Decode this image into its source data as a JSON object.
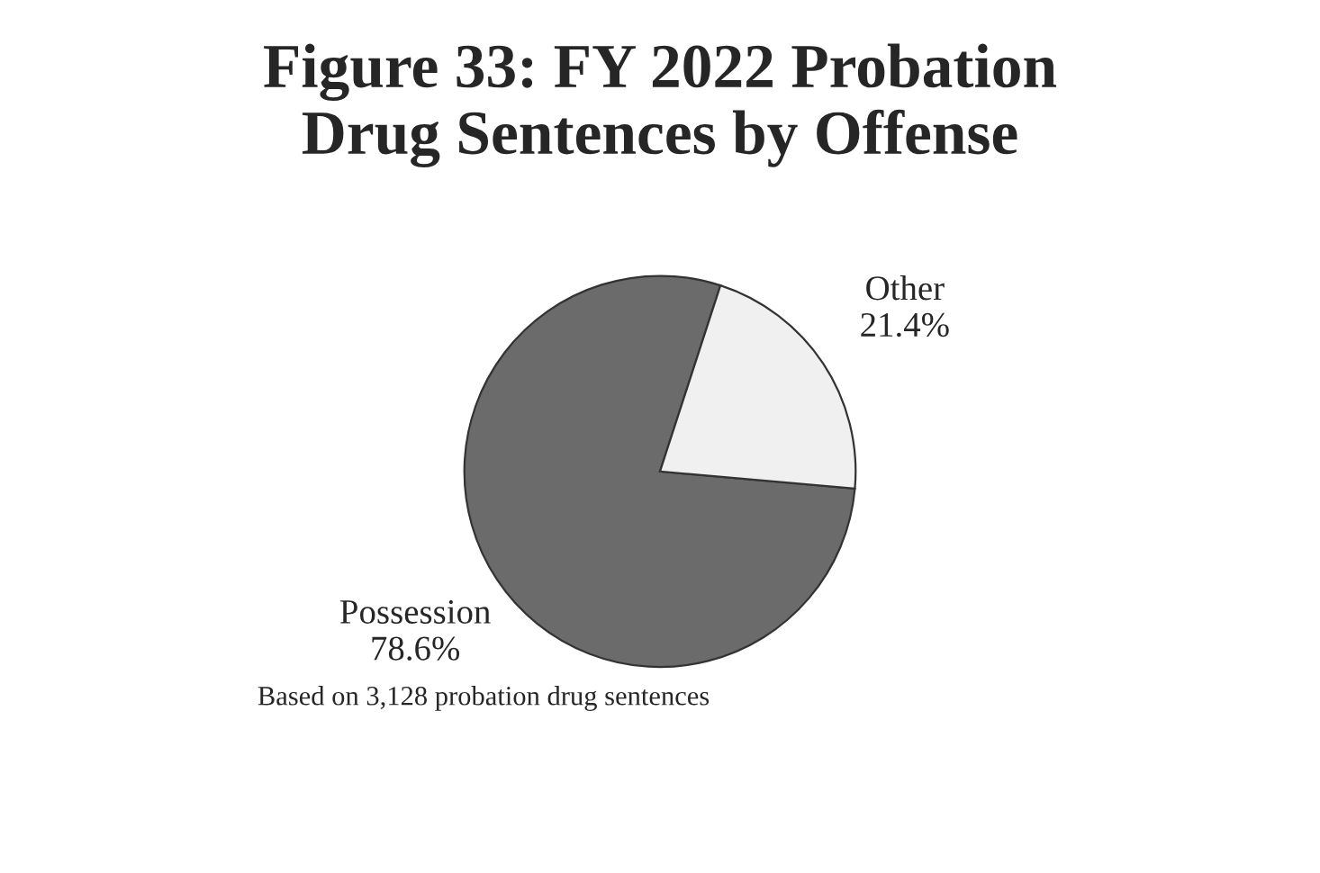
{
  "chart_data": {
    "type": "pie",
    "title": "Figure 33: FY 2022 Probation\nDrug Sentences by Offense",
    "categories": [
      "Possession",
      "Other"
    ],
    "values": [
      78.6,
      21.4
    ],
    "value_labels": [
      "78.6%",
      "21.4%"
    ],
    "colors": [
      "#6b6b6b",
      "#f0f0f0"
    ],
    "annotations": [
      "Based on 3,128 probation drug sentences"
    ]
  }
}
